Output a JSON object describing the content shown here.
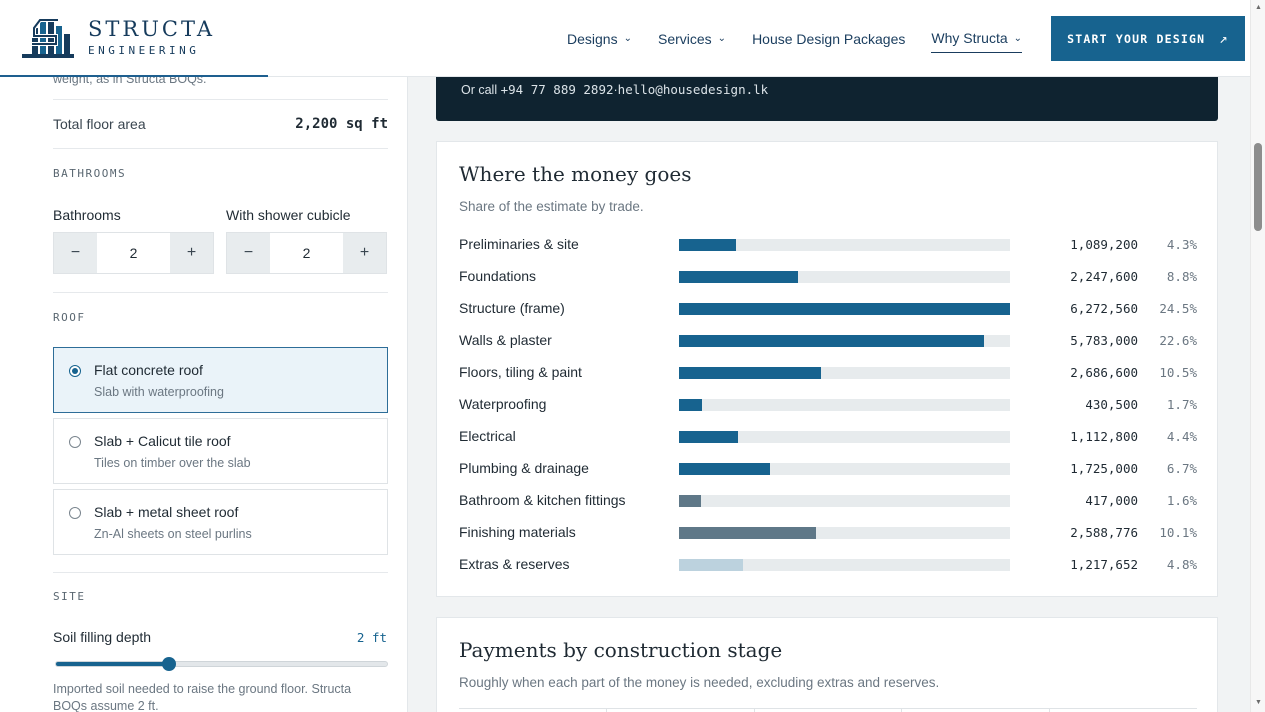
{
  "brand": {
    "name": "STRUCTA",
    "sub": "ENGINEERING",
    "logo_icon": "structa-building-logo-icon",
    "color": "#17638f"
  },
  "nav": {
    "items": [
      {
        "label": "Designs",
        "has_dropdown": true
      },
      {
        "label": "Services",
        "has_dropdown": true
      },
      {
        "label": "House Design Packages",
        "has_dropdown": false
      },
      {
        "label": "Why Structa",
        "has_dropdown": true
      }
    ],
    "cta": "START YOUR DESIGN",
    "cta_icon": "arrow-up-right-icon"
  },
  "sidebar": {
    "cut_text": "weight, as in Structa BOQs.",
    "floor_area": {
      "label": "Total floor area",
      "value": "2,200 sq ft"
    },
    "bathrooms": {
      "section": "BATHROOMS",
      "bathrooms_label": "Bathrooms",
      "bathrooms_value": "2",
      "shower_label": "With shower cubicle",
      "shower_value": "2",
      "minus": "−",
      "plus": "+"
    },
    "roof": {
      "section": "ROOF",
      "options": [
        {
          "title": "Flat concrete roof",
          "sub": "Slab with waterproofing",
          "selected": true
        },
        {
          "title": "Slab + Calicut tile roof",
          "sub": "Tiles on timber over the slab",
          "selected": false
        },
        {
          "title": "Slab + metal sheet roof",
          "sub": "Zn-Al sheets on steel purlins",
          "selected": false
        }
      ]
    },
    "site": {
      "section": "SITE",
      "soil_label": "Soil filling depth",
      "soil_value": "2 ft",
      "soil_level": 0.34,
      "note": "Imported soil needed to raise the ground floor. Structa BOQs assume 2 ft."
    }
  },
  "contact": {
    "prefix": "Or call",
    "phone": "+94 77 889 2892",
    "sep": "·",
    "email": "hello@housedesign.lk"
  },
  "money": {
    "title": "Where the money goes",
    "subtitle": "Share of the estimate by trade."
  },
  "chart_data": {
    "type": "bar",
    "orientation": "horizontal",
    "title": "Where the money goes",
    "subtitle": "Share of the estimate by trade.",
    "categories": [
      "Preliminaries & site",
      "Foundations",
      "Structure (frame)",
      "Walls & plaster",
      "Floors, tiling & paint",
      "Waterproofing",
      "Electrical",
      "Plumbing & drainage",
      "Bathroom & kitchen fittings",
      "Finishing materials",
      "Extras & reserves"
    ],
    "values": [
      1089200,
      2247600,
      6272560,
      5783000,
      2686600,
      430500,
      1112800,
      1725000,
      417000,
      2588776,
      1217652
    ],
    "amount_labels": [
      "1,089,200",
      "2,247,600",
      "6,272,560",
      "5,783,000",
      "2,686,600",
      "430,500",
      "1,112,800",
      "1,725,000",
      "417,000",
      "2,588,776",
      "1,217,652"
    ],
    "percent_labels": [
      "4.3%",
      "8.8%",
      "24.5%",
      "22.6%",
      "10.5%",
      "1.7%",
      "4.4%",
      "6.7%",
      "1.6%",
      "10.1%",
      "4.8%"
    ],
    "bar_colors": [
      "#17638f",
      "#17638f",
      "#17638f",
      "#17638f",
      "#17638f",
      "#17638f",
      "#17638f",
      "#17638f",
      "#5f7888",
      "#5f7888",
      "#bcd2de"
    ],
    "track_color": "#e7ebed",
    "xlim": [
      0,
      6272560
    ],
    "grid": false,
    "legend": "none"
  },
  "payments": {
    "title": "Payments by construction stage",
    "subtitle": "Roughly when each part of the money is needed, excluding extras and reserves."
  }
}
